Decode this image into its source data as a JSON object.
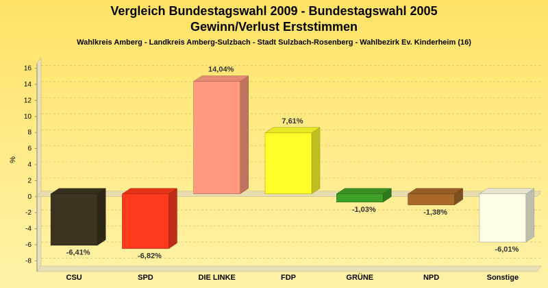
{
  "chart_data": {
    "type": "bar",
    "title": "Vergleich Bundestagswahl 2009 - Bundestagswahl 2005",
    "title2": "Gewinn/Verlust Erststimmen",
    "subtitle": "Wahlkreis Amberg - Landkreis Amberg-Sulzbach - Stadt Sulzbach-Rosenberg - Wahlbezirk Ev. Kinderheim (16)",
    "ylabel": "%",
    "ylim": [
      -9,
      17
    ],
    "yticks": [
      16,
      14,
      12,
      10,
      8,
      6,
      4,
      2,
      0,
      -2,
      -4,
      -6,
      -8
    ],
    "categories": [
      "CSU",
      "SPD",
      "DIE LINKE",
      "FDP",
      "GRÜNE",
      "NPD",
      "Sonstige"
    ],
    "values": [
      -6.41,
      -6.82,
      14.04,
      7.61,
      -1.03,
      -1.38,
      -6.01
    ],
    "value_labels": [
      "-6,41%",
      "-6,82%",
      "14,04%",
      "7,61%",
      "-1,03%",
      "-1,38%",
      "-6,01%"
    ],
    "colors": [
      "#3D3420",
      "#FF3A1C",
      "#FF9A80",
      "#FFFF2A",
      "#3FA028",
      "#A8692A",
      "#FFFDE6"
    ],
    "grid": true
  }
}
